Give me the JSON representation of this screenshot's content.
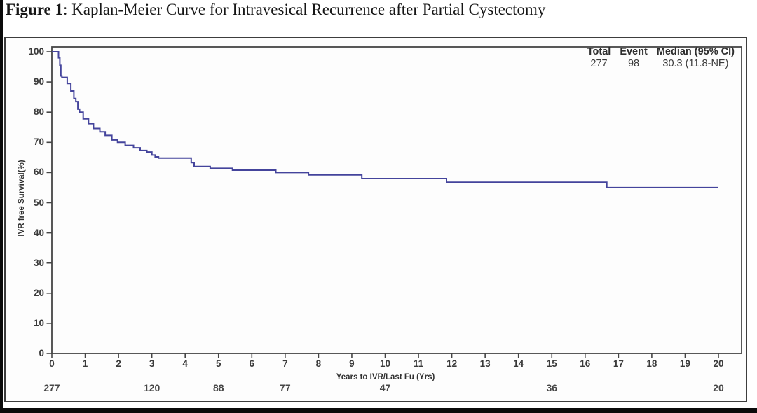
{
  "page": {
    "title_prefix": "Figure 1",
    "title_rest": ": Kaplan-Meier Curve for Intravesical Recurrence after Partial Cystectomy"
  },
  "chart_data": {
    "type": "line",
    "subtype": "kaplan-meier-step",
    "title": "Kaplan-Meier Curve for Intravesical Recurrence after Partial Cystectomy",
    "xlabel": "Years to IVR/Last Fu (Yrs)",
    "ylabel": "IVR free Survival(%)",
    "xlim": [
      0,
      20
    ],
    "ylim": [
      0,
      100
    ],
    "x_ticks": [
      0,
      1,
      2,
      3,
      4,
      5,
      6,
      7,
      8,
      9,
      10,
      11,
      12,
      13,
      14,
      15,
      16,
      17,
      18,
      19,
      20
    ],
    "y_ticks": [
      0,
      10,
      20,
      30,
      40,
      50,
      60,
      70,
      80,
      90,
      100
    ],
    "grid": false,
    "legend_position": "top-right",
    "line_color": "#44449c",
    "axis_color": "#454545",
    "series": [
      {
        "name": "IVR free survival (%)",
        "points": [
          [
            0,
            100
          ],
          [
            0.2,
            100
          ],
          [
            0.2,
            98
          ],
          [
            0.24,
            98
          ],
          [
            0.24,
            95.5
          ],
          [
            0.27,
            95.5
          ],
          [
            0.27,
            92
          ],
          [
            0.3,
            92
          ],
          [
            0.3,
            91.5
          ],
          [
            0.46,
            91.5
          ],
          [
            0.46,
            89.5
          ],
          [
            0.57,
            89.5
          ],
          [
            0.57,
            87
          ],
          [
            0.66,
            87
          ],
          [
            0.66,
            84.5
          ],
          [
            0.72,
            84.5
          ],
          [
            0.72,
            83.5
          ],
          [
            0.78,
            83.5
          ],
          [
            0.78,
            81
          ],
          [
            0.83,
            81
          ],
          [
            0.83,
            80
          ],
          [
            0.94,
            80
          ],
          [
            0.94,
            77.8
          ],
          [
            1.1,
            77.8
          ],
          [
            1.1,
            76.2
          ],
          [
            1.25,
            76.2
          ],
          [
            1.25,
            74.6
          ],
          [
            1.44,
            74.6
          ],
          [
            1.44,
            73.5
          ],
          [
            1.6,
            73.5
          ],
          [
            1.6,
            72.3
          ],
          [
            1.8,
            72.3
          ],
          [
            1.8,
            70.8
          ],
          [
            1.97,
            70.8
          ],
          [
            1.97,
            70.0
          ],
          [
            2.2,
            70.0
          ],
          [
            2.2,
            69.0
          ],
          [
            2.45,
            69.0
          ],
          [
            2.45,
            68.2
          ],
          [
            2.65,
            68.2
          ],
          [
            2.65,
            67.3
          ],
          [
            2.85,
            67.3
          ],
          [
            2.85,
            66.8
          ],
          [
            3.0,
            66.8
          ],
          [
            3.0,
            65.8
          ],
          [
            3.1,
            65.8
          ],
          [
            3.1,
            65.2
          ],
          [
            3.2,
            65.2
          ],
          [
            3.2,
            64.8
          ],
          [
            4.18,
            64.8
          ],
          [
            4.18,
            63.3
          ],
          [
            4.27,
            63.3
          ],
          [
            4.27,
            62.0
          ],
          [
            4.75,
            62.0
          ],
          [
            4.75,
            61.4
          ],
          [
            5.42,
            61.4
          ],
          [
            5.42,
            60.8
          ],
          [
            6.72,
            60.8
          ],
          [
            6.72,
            60.0
          ],
          [
            7.7,
            60.0
          ],
          [
            7.7,
            59.2
          ],
          [
            9.3,
            59.2
          ],
          [
            9.3,
            58.0
          ],
          [
            11.84,
            58.0
          ],
          [
            11.84,
            56.8
          ],
          [
            16.65,
            56.8
          ],
          [
            16.65,
            55.0
          ],
          [
            20,
            55.0
          ]
        ]
      }
    ],
    "at_risk": {
      "years": [
        0,
        3,
        5,
        7,
        10,
        15,
        20
      ],
      "counts": [
        "277",
        "120",
        "88",
        "77",
        "47",
        "36",
        "20"
      ]
    },
    "stats_table": {
      "headers": [
        "Total",
        "Event",
        "Median (95% CI)"
      ],
      "values": [
        "277",
        "98",
        "30.3 (11.8-NE)"
      ]
    }
  }
}
